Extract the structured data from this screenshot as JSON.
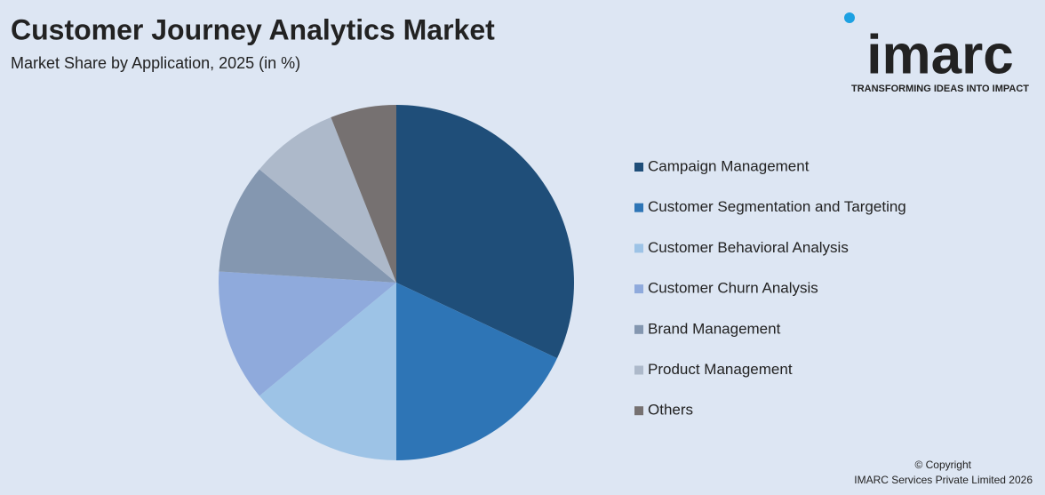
{
  "chart_data": {
    "type": "pie",
    "title": "Customer Journey Analytics Market",
    "subtitle": "Market Share by Application, 2025 (in %)",
    "categories": [
      "Campaign Management",
      "Customer Segmentation and Targeting",
      "Customer Behavioral Analysis",
      "Customer Churn Analysis",
      "Brand Management",
      "Product Management",
      "Others"
    ],
    "values": [
      32,
      18,
      14,
      12,
      10,
      8,
      6
    ],
    "colors": [
      "#1f4e79",
      "#2e75b6",
      "#9dc3e6",
      "#8faadc",
      "#8497b0",
      "#adb9ca",
      "#767171"
    ]
  },
  "logo": {
    "name": "imarc",
    "tagline": "TRANSFORMING IDEAS INTO IMPACT"
  },
  "footer": [
    "© Copyright",
    "IMARC Services Private Limited 2026"
  ]
}
